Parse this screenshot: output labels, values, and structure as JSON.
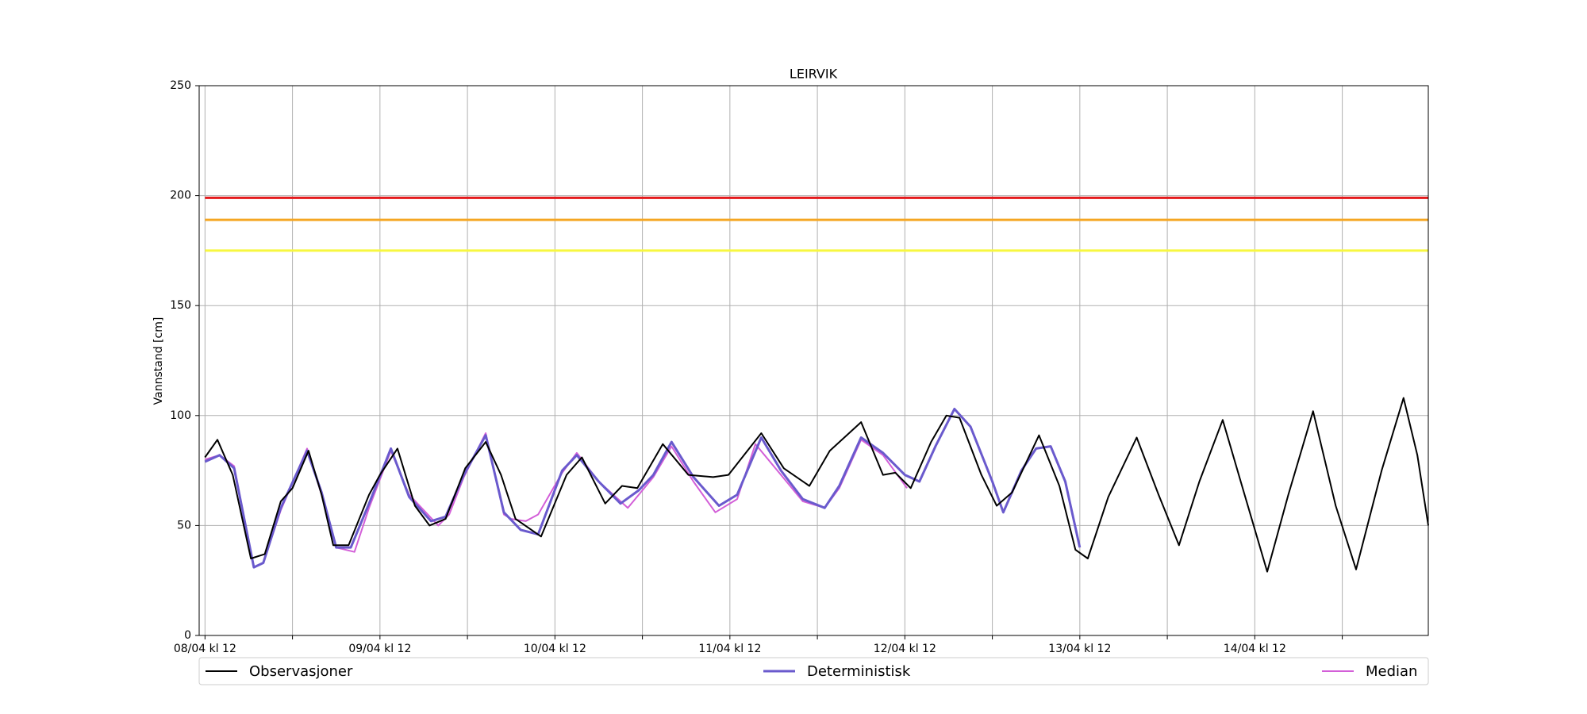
{
  "chart_data": {
    "type": "line",
    "title": "LEIRVIK",
    "ylabel": "Vannstand [cm]",
    "xlim": [
      -0.8,
      167.8
    ],
    "ylim": [
      0,
      250
    ],
    "xticks": [
      {
        "value": 0,
        "label": "08/04 kl 12"
      },
      {
        "value": 24,
        "label": "09/04 kl 12"
      },
      {
        "value": 48,
        "label": "10/04 kl 12"
      },
      {
        "value": 72,
        "label": "11/04 kl 12"
      },
      {
        "value": 96,
        "label": "12/04 kl 12"
      },
      {
        "value": 120,
        "label": "13/04 kl 12"
      },
      {
        "value": 144,
        "label": "14/04 kl 12"
      }
    ],
    "xminor_ticks": [
      12,
      36,
      60,
      84,
      108,
      132,
      156
    ],
    "yticks": [
      0,
      50,
      100,
      150,
      200,
      250
    ],
    "grid": true,
    "hlines": [
      {
        "value": 199,
        "color": "#e41a1c"
      },
      {
        "value": 189,
        "color": "#f5a623"
      },
      {
        "value": 175,
        "color": "#f7f740"
      }
    ],
    "series": [
      {
        "name": "Observasjoner",
        "color": "#000000",
        "width": 2,
        "x": [
          0,
          1.7,
          3.8,
          6.3,
          8.2,
          10.4,
          12,
          14.2,
          16,
          17.6,
          19.7,
          22.5,
          24,
          26.4,
          28.8,
          30.8,
          33,
          35.7,
          38.5,
          40.6,
          42.6,
          46.1,
          49.6,
          51.7,
          54.9,
          57.2,
          59.3,
          62.8,
          66.3,
          69.7,
          71.8,
          76.3,
          79.4,
          82.9,
          85.7,
          90,
          93,
          94.7,
          96.8,
          99.6,
          101.7,
          103.5,
          106.5,
          108.6,
          110.7,
          114.4,
          117.2,
          119.4,
          121.1,
          123.9,
          127.8,
          130.8,
          133.6,
          136.4,
          139.6,
          142.6,
          145.7,
          148.6,
          152,
          155.1,
          157.9,
          161.4,
          164.4,
          166.3,
          167.8
        ],
        "y": [
          81,
          89,
          73,
          35,
          37,
          61,
          67,
          84,
          64,
          41,
          41,
          64,
          73,
          85,
          59,
          50,
          53,
          76,
          88,
          73,
          53,
          45,
          73,
          81,
          60,
          68,
          67,
          87,
          73,
          72,
          73,
          92,
          76,
          68,
          84,
          97,
          73,
          74,
          67,
          88,
          100,
          99,
          73,
          59,
          65,
          91,
          68,
          39,
          35,
          63,
          90,
          64,
          41,
          70,
          98,
          64,
          29,
          64,
          102,
          59,
          30,
          75,
          108,
          82,
          50
        ]
      },
      {
        "name": "Deterministisk",
        "color": "#6a5acd",
        "width": 3,
        "x": [
          0,
          2,
          4,
          6.7,
          8,
          10.4,
          14,
          16,
          18,
          20,
          22.5,
          25.5,
          28,
          31,
          33,
          35.5,
          38.5,
          41,
          43.3,
          45.7,
          49,
          51,
          54,
          57,
          59.5,
          61.5,
          64,
          67,
          70.5,
          73,
          76.3,
          79,
          82,
          85,
          87,
          90,
          93,
          96,
          98,
          100.2,
          102.8,
          105,
          108,
          109.5,
          112,
          114,
          116,
          118,
          120
        ],
        "y": [
          79,
          82,
          76,
          31,
          33,
          58,
          84,
          65,
          40,
          40,
          60,
          85,
          63,
          52,
          54,
          73,
          91,
          56,
          48,
          46,
          75,
          82,
          70,
          60,
          66,
          73,
          88,
          72,
          59,
          64,
          90,
          75,
          62,
          58,
          68,
          90,
          83,
          73,
          70,
          86,
          103,
          95,
          70,
          56,
          75,
          85,
          86,
          70,
          40
        ]
      },
      {
        "name": "Median",
        "color": "#d35fd8",
        "width": 2,
        "x": [
          0,
          2,
          4,
          6.7,
          8,
          10.4,
          14,
          16,
          18,
          20.5,
          22.5,
          25.5,
          28,
          32,
          33.5,
          35.5,
          38.5,
          41,
          42,
          44,
          45.7,
          49,
          51,
          54,
          58,
          59.5,
          61.5,
          64,
          67,
          70,
          73,
          75.5,
          79,
          82,
          85,
          87,
          90,
          93,
          96.3
        ],
        "y": [
          80,
          82,
          77,
          31,
          33,
          57,
          85,
          64,
          40,
          38,
          58,
          84,
          64,
          50,
          55,
          72,
          92,
          55,
          53,
          52,
          55,
          74,
          83,
          70,
          58,
          64,
          72,
          86,
          70,
          56,
          62,
          87,
          73,
          61,
          58,
          67,
          89,
          82,
          67
        ]
      }
    ]
  }
}
